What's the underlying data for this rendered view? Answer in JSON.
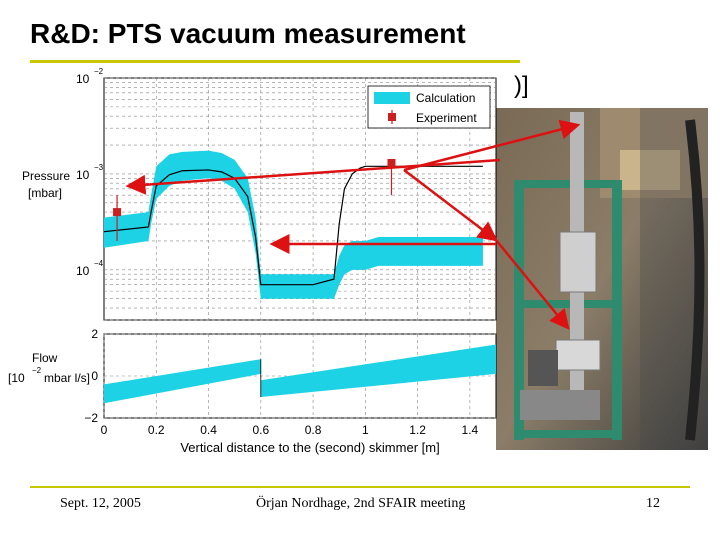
{
  "slide": {
    "title": "R&D: PTS vacuum measurement",
    "stray_text": ")]",
    "footer_left": "Sept. 12, 2005",
    "footer_center": "Örjan Nordhage, 2nd SFAIR meeting",
    "footer_right": "12"
  },
  "colors": {
    "calculation_band": "#1ed2e6",
    "calculation_line": "#000000",
    "experiment": "#cc1f1f",
    "arrow": "#dd1111",
    "frame": "#2e8b6e",
    "accent_rule": "#c8c800"
  },
  "photo": {
    "description_icon": "photo-of-vacuum-setup"
  },
  "chart_data": [
    {
      "type": "line",
      "title": "",
      "ylabel_line1": "Pressure",
      "ylabel_line2": "[mbar]",
      "xlabel": "",
      "yscale": "log",
      "xlim": [
        0,
        1.5
      ],
      "ylim": [
        3e-05,
        0.01
      ],
      "ytick_labels": [
        {
          "base": "10",
          "exp": "−2",
          "value": 0.01
        },
        {
          "base": "10",
          "exp": "−3",
          "value": 0.001
        },
        {
          "base": "10",
          "exp": "−4",
          "value": 0.0001
        }
      ],
      "legend": {
        "placement": "top-right",
        "entries": [
          "Calculation",
          "Experiment"
        ]
      },
      "series": [
        {
          "name": "Calculation",
          "kind": "band",
          "x": [
            0,
            0.17,
            0.18,
            0.2,
            0.25,
            0.3,
            0.4,
            0.45,
            0.5,
            0.55,
            0.58,
            0.6,
            0.63,
            0.7,
            0.8,
            0.88,
            0.9,
            0.92,
            0.95,
            0.98,
            1.0,
            1.05,
            1.2,
            1.4,
            1.45
          ],
          "lower": [
            0.00017,
            0.0002,
            0.0003,
            0.00055,
            0.00075,
            0.00085,
            0.0009,
            0.00085,
            0.0007,
            0.0004,
            0.00015,
            5e-05,
            5e-05,
            5e-05,
            5e-05,
            5e-05,
            7e-05,
            9e-05,
            0.0001,
            0.0001,
            0.0001,
            0.00011,
            0.00011,
            0.00011,
            0.00011
          ],
          "upper": [
            0.00035,
            0.0004,
            0.0006,
            0.0012,
            0.0016,
            0.0017,
            0.00175,
            0.00165,
            0.0014,
            0.0009,
            0.00035,
            9e-05,
            9e-05,
            9e-05,
            9e-05,
            9e-05,
            0.00014,
            0.00018,
            0.0002,
            0.0002,
            0.0002,
            0.00022,
            0.00022,
            0.00022,
            0.00022
          ]
        },
        {
          "name": "",
          "kind": "line",
          "x": [
            0,
            0.17,
            0.18,
            0.2,
            0.25,
            0.3,
            0.4,
            0.45,
            0.5,
            0.55,
            0.58,
            0.6,
            0.63,
            0.7,
            0.8,
            0.88,
            0.9,
            0.92,
            0.95,
            0.98,
            1.0,
            1.05,
            1.2,
            1.4,
            1.45
          ],
          "y": [
            0.00025,
            0.00028,
            0.0004,
            0.00075,
            0.00098,
            0.00108,
            0.0011,
            0.00105,
            0.0009,
            0.00058,
            0.00022,
            7e-05,
            7e-05,
            7e-05,
            7e-05,
            8e-05,
            0.0003,
            0.0007,
            0.001,
            0.00115,
            0.0012,
            0.0012,
            0.0012,
            0.0012,
            0.0012
          ]
        },
        {
          "name": "Experiment",
          "kind": "points",
          "points": [
            {
              "x": 0.05,
              "y": 0.0004,
              "lo": 0.0002,
              "hi": 0.0006
            },
            {
              "x": 1.1,
              "y": 0.0013,
              "lo": 0.0006,
              "hi": 0.0014
            }
          ]
        }
      ]
    },
    {
      "type": "area",
      "title": "",
      "ylabel_line1": "Flow",
      "ylabel_line2": "mbar l/s]",
      "ylabel_prefix": "[10",
      "ylabel_exp": "−2",
      "xlabel": "Vertical distance to the (second) skimmer [m]",
      "xlim": [
        0,
        1.5
      ],
      "ylim": [
        -2,
        2
      ],
      "xticks": [
        0,
        0.2,
        0.4,
        0.6,
        0.8,
        1,
        1.2,
        1.4
      ],
      "xtick_labels": [
        "0",
        "0.2",
        "0.4",
        "0.6",
        "0.8",
        "1",
        "1.2",
        "1.4"
      ],
      "yticks": [
        2,
        0,
        -2
      ],
      "ytick_labels": [
        "2",
        "0",
        "−2"
      ],
      "series": [
        {
          "name": "",
          "kind": "band",
          "x": [
            0,
            0.6,
            0.6,
            1.5
          ],
          "lower": [
            -1.3,
            0.1,
            -1.0,
            0.1
          ],
          "upper": [
            -0.4,
            0.8,
            -0.2,
            1.5
          ]
        }
      ]
    }
  ]
}
